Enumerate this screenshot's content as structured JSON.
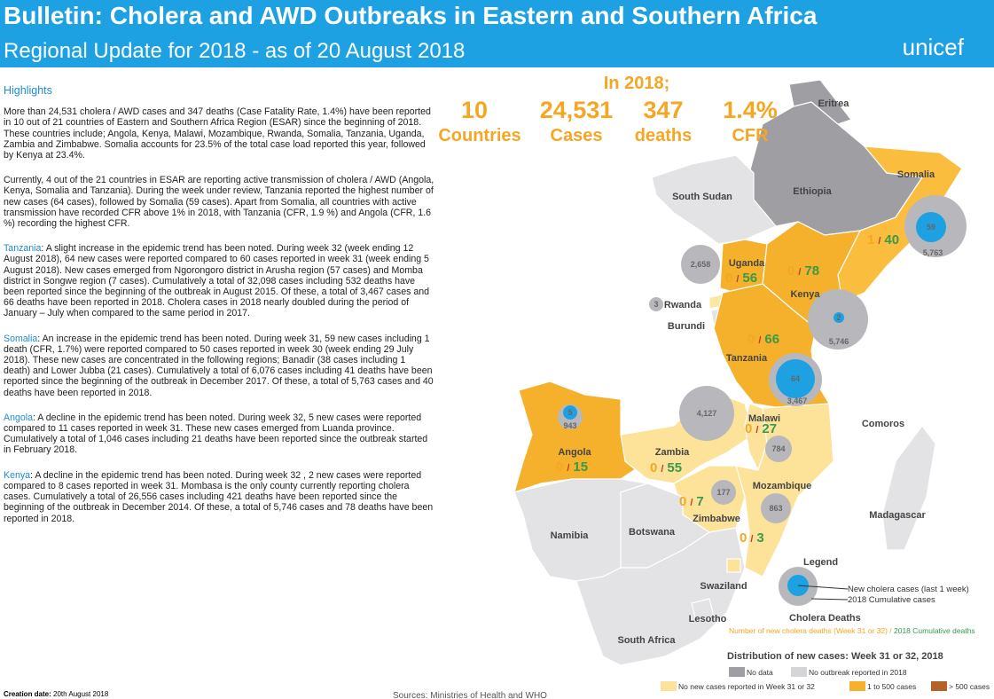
{
  "header": {
    "title": "Bulletin: Cholera and AWD Outbreaks in Eastern and Southern Africa",
    "subtitle": "Regional Update for 2018 - as of 20 August 2018",
    "logo": "unicef"
  },
  "highlights": {
    "heading": "Highlights",
    "paragraphs": [
      {
        "lead": "",
        "text": "More than 24,531 cholera / AWD cases and 347 deaths (Case Fatality Rate, 1.4%) have been reported in 10 out of 21 countries of Eastern and Southern Africa Region (ESAR) since the beginning of 2018. These countries include; Angola, Kenya, Malawi, Mozambique, Rwanda, Somalia, Tanzania, Uganda, Zambia and Zimbabwe. Somalia accounts for 23.5% of the total case load reported this year, followed by Kenya at 23.4%."
      },
      {
        "lead": "",
        "text": "Currently, 4 out of the 21 countries in ESAR are reporting active transmission of cholera / AWD (Angola, Kenya, Somalia and Tanzania). During the week under review, Tanzania reported the highest number of new cases (64 cases), followed by Somalia (59 cases). Apart from Somalia, all countries with active transmission have recorded CFR above 1% in 2018, with Tanzania (CFR, 1.9 %) and Angola (CFR, 1.6 %) recording the highest CFR."
      },
      {
        "lead": "Tanzania",
        "text": ": A slight increase in the epidemic trend has been noted. During week 32 (week ending 12 August 2018), 64 new cases were reported compared to 60 cases reported in week 31 (week ending 5 August 2018). New cases emerged from Ngorongoro district in Arusha region (57 cases) and Momba district in Songwe region (7 cases).  Cumulatively a total of 32,098 cases including 532 deaths have been reported since the beginning of the outbreak in August 2015. Of these, a total of 3,467 cases and 66 deaths have been reported in 2018. Cholera cases in 2018 nearly doubled during the period of January – July when compared to the same period in 2017."
      },
      {
        "lead": "Somalia",
        "text": ": An increase in the epidemic trend has been noted. During week 31, 59 new cases including 1 death (CFR, 1.7%) were reported compared to 50 cases reported in week 30 (week ending 29 July 2018). These new cases are concentrated in the following regions; Banadir (38 cases including 1 death) and Lower Jubba (21 cases). Cumulatively a total of 6,076 cases including 41 deaths have been reported since the beginning of the outbreak in December 2017. Of these, a total of 5,763 cases and 40 deaths have been reported in 2018."
      },
      {
        "lead": "Angola",
        "text": ": A decline in the epidemic trend has been noted. During week 32, 5 new cases were reported compared to 11 cases reported in week 31. These new cases emerged from Luanda province. Cumulatively a total of 1,046 cases including 21 deaths have been reported since the outbreak started in February 2018."
      },
      {
        "lead": "Kenya",
        "text": ": A decline in the epidemic trend has been noted. During week 32 , 2 new cases were reported compared to 8 cases reported in week 31. Mombasa is the only county currently reporting cholera cases. Cumulatively a total of 26,556 cases including 421 deaths have been reported since the beginning of the outbreak in December 2014. Of these, a total of 5,746 cases and 78 deaths have been reported in 2018."
      }
    ]
  },
  "stats": {
    "heading": "In 2018;",
    "items": [
      {
        "value": "10",
        "label": "Countries"
      },
      {
        "value": "24,531",
        "label": "Cases"
      },
      {
        "value": "347",
        "label": "deaths"
      },
      {
        "value": "1.4%",
        "label": "CFR"
      }
    ]
  },
  "map": {
    "countries": [
      "Eritrea",
      "Somalia",
      "Ethiopia",
      "South Sudan",
      "Uganda",
      "Kenya",
      "Rwanda",
      "Burundi",
      "Tanzania",
      "Comoros",
      "Malawi",
      "Angola",
      "Zambia",
      "Mozambique",
      "Zimbabwe",
      "Madagascar",
      "Namibia",
      "Botswana",
      "Swaziland",
      "Lesotho",
      "South Africa"
    ],
    "bubbles": [
      "59",
      "5,763",
      "2,658",
      "2",
      "5,746",
      "3",
      "64",
      "3,467",
      "5",
      "943",
      "4,127",
      "784",
      "177",
      "863"
    ],
    "deaths": [
      {
        "new": "1",
        "sep": "/",
        "cum": "40"
      },
      {
        "new": "0",
        "sep": "/",
        "cum": "78"
      },
      {
        "new": "0",
        "sep": "/",
        "cum": "56"
      },
      {
        "new": "0",
        "sep": "/",
        "cum": "66"
      },
      {
        "new": "0",
        "sep": "/",
        "cum": "27"
      },
      {
        "new": "0",
        "sep": "/",
        "cum": "15"
      },
      {
        "new": "0",
        "sep": "/",
        "cum": "55"
      },
      {
        "new": "0",
        "sep": "/",
        "cum": "7"
      },
      {
        "new": "0",
        "sep": "/",
        "cum": "3"
      }
    ]
  },
  "legend": {
    "title": "Legend",
    "new_cases": "New cholera cases (last 1 week)",
    "cumulative": "2018 Cumulative cases",
    "deaths_title": "Cholera Deaths",
    "deaths_note": "Number of new cholera deaths (Week 31 or 32) /",
    "deaths_cum": " 2018 Cumulative deaths",
    "dist_title": "Distribution of new cases: Week 31 or 32, 2018",
    "classes": [
      "No data",
      "No outbreak reported in 2018",
      "No new cases reported in Week 31 or 32",
      "1 to 500 cases",
      "> 500 cases"
    ]
  },
  "footer": {
    "creation_label": "Creation date:",
    "creation_date": " 20th August 2018",
    "sources": "Sources: Ministries of Health and WHO"
  }
}
